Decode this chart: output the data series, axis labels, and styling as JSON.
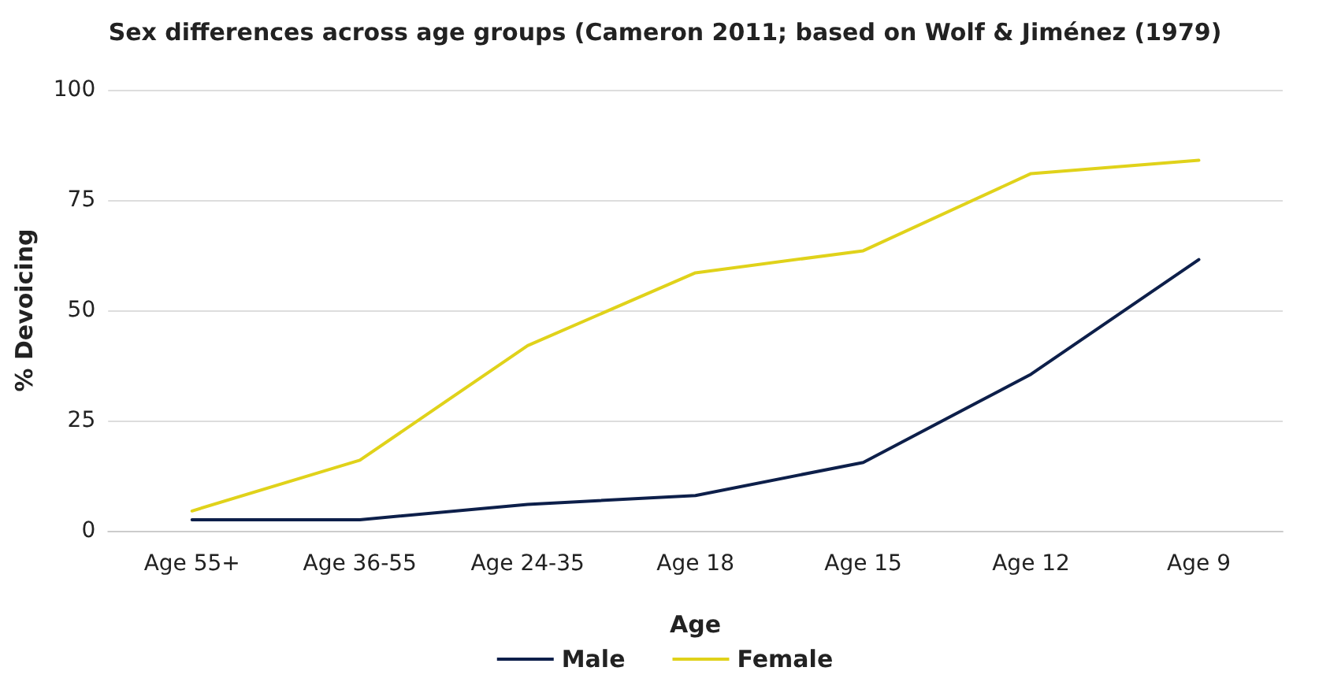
{
  "chart_data": {
    "type": "line",
    "title": "Sex differences across age groups (Cameron 2011; based on Wolf & Jiménez (1979)",
    "xlabel": "Age",
    "ylabel": "% Devoicing",
    "categories": [
      "Age 55+",
      "Age 36-55",
      "Age 24-35",
      "Age 18",
      "Age 15",
      "Age 12",
      "Age 9"
    ],
    "series": [
      {
        "name": "Male",
        "color": "#0d1f4a",
        "values": [
          2.5,
          2.5,
          6,
          8,
          15.5,
          35.5,
          61.5
        ]
      },
      {
        "name": "Female",
        "color": "#e0d21a",
        "values": [
          4.5,
          16,
          42,
          58.5,
          63.5,
          81,
          84
        ]
      }
    ],
    "ylim": [
      0,
      100
    ],
    "yticks": [
      0,
      25,
      50,
      75,
      100
    ],
    "grid": "y",
    "legend": "bottom",
    "marker": "none",
    "line_style": "solid"
  }
}
